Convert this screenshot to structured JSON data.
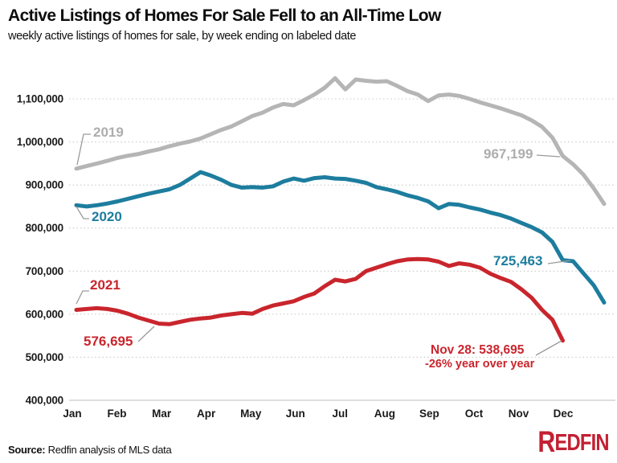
{
  "header": {
    "title": "Active Listings of Homes For Sale Fell to an All-Time Low",
    "subtitle": "weekly active listings of homes for sale, by week ending on labeled date"
  },
  "footer": {
    "source_label": "Source:",
    "source_text": " Redfin analysis of MLS data",
    "logo_first_letter": "R",
    "logo_rest": "EDFIN"
  },
  "chart_data": {
    "type": "line",
    "title": "Active Listings of Homes For Sale Fell to an All-Time Low",
    "subtitle": "weekly active listings of homes for sale, by week ending on labeled date",
    "xlabel": "",
    "ylabel": "",
    "x_tick_labels": [
      "Jan",
      "Feb",
      "Mar",
      "Apr",
      "May",
      "Jun",
      "Jul",
      "Aug",
      "Sep",
      "Oct",
      "Nov",
      "Dec"
    ],
    "y_tick_labels": [
      "1,100,000",
      "1,000,000",
      "900,000",
      "800,000",
      "700,000",
      "600,000",
      "500,000",
      "400,000"
    ],
    "y_tick_values": [
      1100000,
      1000000,
      900000,
      800000,
      700000,
      600000,
      500000,
      400000
    ],
    "ylim": [
      400000,
      1160000
    ],
    "grid": "dotted horizontal",
    "legend_position": "inline line labels",
    "series": [
      {
        "name": "2019",
        "color": "#b5b5b5",
        "values": [
          938000,
          944000,
          950000,
          956000,
          963000,
          968000,
          972000,
          978000,
          983000,
          990000,
          996000,
          1001000,
          1008000,
          1018000,
          1028000,
          1036000,
          1048000,
          1060000,
          1068000,
          1080000,
          1088000,
          1085000,
          1097000,
          1110000,
          1126000,
          1148000,
          1122000,
          1145000,
          1142000,
          1140000,
          1141000,
          1130000,
          1118000,
          1110000,
          1095000,
          1108000,
          1110000,
          1107000,
          1100000,
          1092000,
          1085000,
          1078000,
          1070000,
          1062000,
          1050000,
          1035000,
          1010000,
          967199,
          948000,
          924000,
          892000,
          856000
        ]
      },
      {
        "name": "2020",
        "color": "#1d7d9e",
        "values": [
          853000,
          850000,
          853000,
          857000,
          862000,
          868000,
          874000,
          880000,
          885000,
          890000,
          900000,
          915000,
          930000,
          922000,
          912000,
          900000,
          894000,
          895000,
          894000,
          897000,
          908000,
          915000,
          910000,
          916000,
          918000,
          915000,
          914000,
          910000,
          905000,
          895000,
          890000,
          884000,
          876000,
          870000,
          862000,
          846000,
          856000,
          854000,
          848000,
          843000,
          836000,
          830000,
          822000,
          812000,
          802000,
          790000,
          768000,
          725463,
          723000,
          695000,
          667000,
          627000
        ]
      },
      {
        "name": "2021",
        "color": "#c9252d",
        "values": [
          610000,
          612000,
          614000,
          612000,
          608000,
          601000,
          592000,
          585000,
          578000,
          576695,
          582000,
          587000,
          590000,
          592000,
          597000,
          600000,
          603000,
          601000,
          612000,
          620000,
          625000,
          630000,
          640000,
          648000,
          665000,
          680000,
          676000,
          682000,
          700000,
          708000,
          716000,
          723000,
          727000,
          728000,
          727000,
          722000,
          712000,
          718000,
          715000,
          708000,
          694000,
          684000,
          675000,
          658000,
          638000,
          610000,
          587000,
          538695
        ]
      }
    ],
    "annotations": {
      "y2019": "2019",
      "y2020": "2020",
      "y2021": "2021",
      "min2021": "576,695",
      "end2019": "967,199",
      "end2020": "725,463",
      "end2021_line1": "Nov 28: 538,695",
      "end2021_line2": "-26% year over year"
    }
  }
}
